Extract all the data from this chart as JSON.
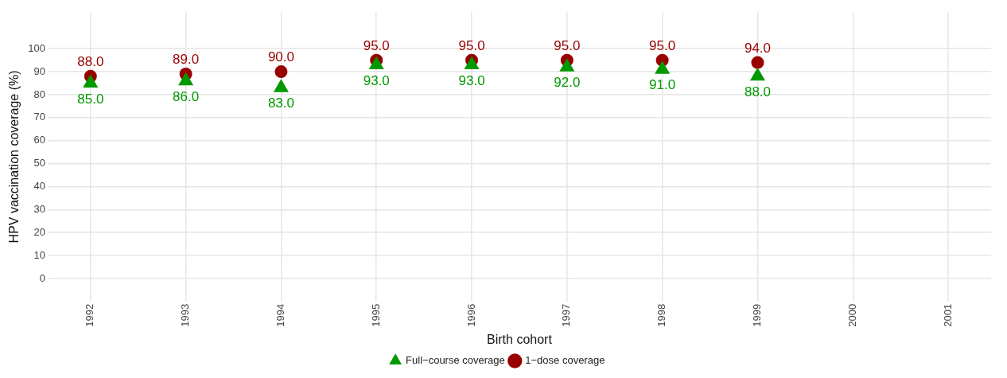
{
  "chart_data": {
    "type": "scatter",
    "xlabel": "Birth cohort",
    "ylabel": "HPV vaccination coverage (%)",
    "categories": [
      "1992",
      "1993",
      "1994",
      "1995",
      "1996",
      "1997",
      "1998",
      "1999",
      "2000",
      "2001"
    ],
    "series": [
      {
        "name": "1−dose coverage",
        "color": "#990000",
        "marker": "circle",
        "values": [
          88,
          89,
          90,
          95,
          95,
          95,
          95,
          94,
          null,
          null
        ],
        "value_labels": [
          "88.0",
          "89.0",
          "90.0",
          "95.0",
          "95.0",
          "95.0",
          "95.0",
          "94.0",
          null,
          null
        ]
      },
      {
        "name": "Full−course coverage",
        "color": "#009900",
        "marker": "triangle",
        "values": [
          85,
          86,
          83,
          93,
          93,
          92,
          91,
          88,
          null,
          null
        ],
        "value_labels": [
          "85.0",
          "86.0",
          "83.0",
          "93.0",
          "93.0",
          "92.0",
          "91.0",
          "88.0",
          null,
          null
        ]
      }
    ],
    "ylim": [
      -10,
      116
    ],
    "yticks": [
      0,
      10,
      20,
      30,
      40,
      50,
      60,
      70,
      80,
      90,
      100
    ],
    "grid": true,
    "legend": "bottom"
  }
}
